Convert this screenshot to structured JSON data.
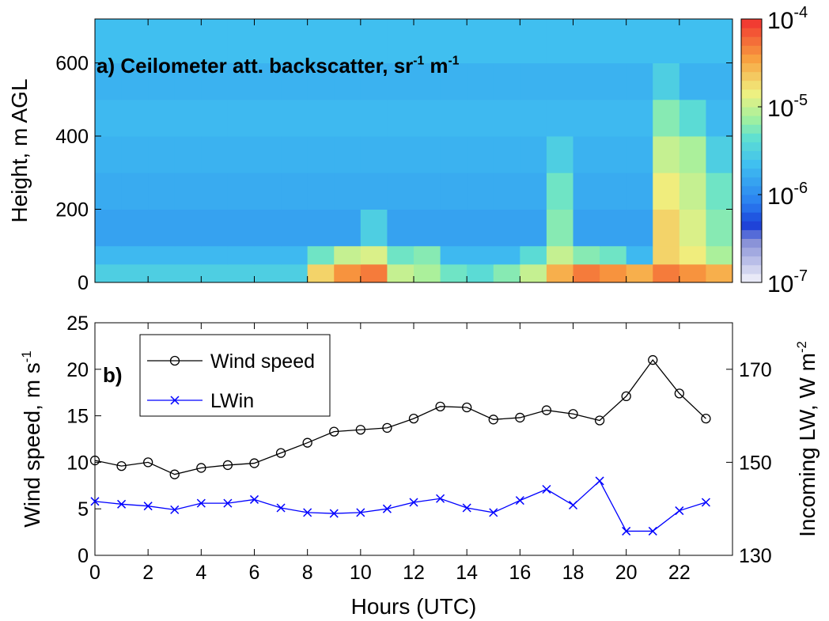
{
  "chart_data": [
    {
      "type": "heatmap",
      "title": {
        "text": [
          "a) Ceilometer att. backscatter, sr",
          " m"
        ],
        "sup": [
          "-1",
          "-1"
        ]
      },
      "ylabel": "Height, m AGL",
      "x_bins": [
        0,
        1,
        2,
        3,
        4,
        5,
        6,
        7,
        8,
        9,
        10,
        11,
        12,
        13,
        14,
        15,
        16,
        17,
        18,
        19,
        20,
        21,
        22,
        23,
        24
      ],
      "y_bins": [
        0,
        50,
        100,
        200,
        300,
        400,
        500,
        600,
        720
      ],
      "values": [
        [
          3e-06,
          3e-06,
          3e-06,
          3e-06,
          3e-06,
          3e-06,
          3e-06,
          3e-06,
          2e-05,
          4e-05,
          5e-05,
          1e-05,
          8e-06,
          5e-06,
          4e-06,
          6e-06,
          1e-05,
          3e-05,
          5e-05,
          4e-05,
          3e-05,
          5e-05,
          4e-05,
          3e-05
        ],
        [
          2e-06,
          2e-06,
          2e-06,
          2e-06,
          2e-06,
          2e-06,
          2e-06,
          2e-06,
          5e-06,
          1e-05,
          1.2e-05,
          5e-06,
          6e-06,
          2e-06,
          2e-06,
          2e-06,
          4e-06,
          1e-05,
          6e-06,
          5e-06,
          2e-06,
          2e-05,
          1.5e-05,
          8e-06
        ],
        [
          1.4e-06,
          1.4e-06,
          1.4e-06,
          1.4e-06,
          1.4e-06,
          1.4e-06,
          1.4e-06,
          1.4e-06,
          1.4e-06,
          1.4e-06,
          3e-06,
          1.4e-06,
          1.4e-06,
          1.4e-06,
          1.4e-06,
          1.4e-06,
          1.4e-06,
          6e-06,
          1.4e-06,
          1.4e-06,
          1.4e-06,
          2e-05,
          1.2e-05,
          6e-06
        ],
        [
          1.6e-06,
          1.6e-06,
          1.6e-06,
          1.6e-06,
          1.6e-06,
          1.6e-06,
          1.6e-06,
          1.6e-06,
          1.6e-06,
          1.6e-06,
          1.6e-06,
          1.6e-06,
          1.6e-06,
          1.6e-06,
          1.6e-06,
          1.6e-06,
          1.6e-06,
          5e-06,
          1.6e-06,
          1.6e-06,
          1.6e-06,
          1.5e-05,
          1e-05,
          5e-06
        ],
        [
          1.8e-06,
          1.8e-06,
          1.8e-06,
          1.8e-06,
          1.8e-06,
          1.8e-06,
          1.8e-06,
          1.8e-06,
          1.8e-06,
          1.8e-06,
          1.8e-06,
          1.8e-06,
          1.8e-06,
          1.8e-06,
          1.8e-06,
          1.8e-06,
          1.8e-06,
          3e-06,
          1.8e-06,
          1.8e-06,
          1.8e-06,
          1e-05,
          8e-06,
          3e-06
        ],
        [
          2e-06,
          2e-06,
          2e-06,
          2e-06,
          2e-06,
          2e-06,
          2e-06,
          2e-06,
          2e-06,
          2e-06,
          2e-06,
          2e-06,
          2e-06,
          2e-06,
          2e-06,
          2e-06,
          2e-06,
          2e-06,
          2e-06,
          2e-06,
          2e-06,
          6e-06,
          4e-06,
          2e-06
        ],
        [
          1.8e-06,
          1.8e-06,
          1.8e-06,
          1.8e-06,
          1.8e-06,
          1.8e-06,
          1.8e-06,
          1.8e-06,
          1.8e-06,
          1.8e-06,
          1.8e-06,
          1.8e-06,
          1.8e-06,
          1.8e-06,
          1.8e-06,
          1.8e-06,
          1.8e-06,
          1.8e-06,
          1.8e-06,
          1.8e-06,
          1.8e-06,
          3e-06,
          1.8e-06,
          1.8e-06
        ],
        [
          2.2e-06,
          2.2e-06,
          2.2e-06,
          2.2e-06,
          2.2e-06,
          2.2e-06,
          2.2e-06,
          2.2e-06,
          2.2e-06,
          2.2e-06,
          2.2e-06,
          2.2e-06,
          2.2e-06,
          2.2e-06,
          2.2e-06,
          2.2e-06,
          2.2e-06,
          2.2e-06,
          2.2e-06,
          2.2e-06,
          2.2e-06,
          2.2e-06,
          2.2e-06,
          2.2e-06
        ]
      ],
      "xlim": [
        0,
        24
      ],
      "xticks": [
        0,
        2,
        4,
        6,
        8,
        10,
        12,
        14,
        16,
        18,
        20,
        22
      ],
      "xtick_labels": false,
      "ylim": [
        0,
        720
      ],
      "yticks": [
        0,
        200,
        400,
        600
      ],
      "zlim": [
        1e-07,
        0.0001
      ],
      "zscale": "log",
      "zticks": [
        {
          "value": 1e-07,
          "label": "10",
          "sup": "-7"
        },
        {
          "value": 1e-06,
          "label": "10",
          "sup": "-6"
        },
        {
          "value": 1e-05,
          "label": "10",
          "sup": "-5"
        },
        {
          "value": 0.0001,
          "label": "10",
          "sup": "-4"
        }
      ]
    },
    {
      "type": "line",
      "annotation": "b)",
      "xlabel": "Hours (UTC)",
      "ylabel": {
        "text": [
          "Wind speed, m s"
        ],
        "sup": [
          "-1"
        ]
      },
      "y2label": {
        "text": [
          "Incoming LW, W m"
        ],
        "sup": [
          "-2"
        ]
      },
      "x": [
        0,
        1,
        2,
        3,
        4,
        5,
        6,
        7,
        8,
        9,
        10,
        11,
        12,
        13,
        14,
        15,
        16,
        17,
        18,
        19,
        20,
        21,
        22,
        23
      ],
      "series": [
        {
          "name": "Wind speed",
          "color": "#000000",
          "marker": "circle",
          "values": [
            10.2,
            9.6,
            10.0,
            8.7,
            9.4,
            9.7,
            9.9,
            11.0,
            12.1,
            13.3,
            13.5,
            13.7,
            14.7,
            16.0,
            15.9,
            14.6,
            14.8,
            15.6,
            15.2,
            14.5,
            17.1,
            21.0,
            17.4,
            14.7
          ]
        },
        {
          "name": "LWin",
          "color": "#0000ff",
          "marker": "x",
          "axis": "y2",
          "values": [
            141.6,
            141.0,
            140.6,
            139.8,
            141.2,
            141.2,
            142.0,
            140.2,
            139.2,
            139.0,
            139.2,
            140.0,
            141.4,
            142.2,
            140.2,
            139.2,
            141.8,
            144.2,
            140.8,
            146.0,
            135.2,
            135.2,
            139.6,
            141.4
          ]
        }
      ],
      "xlim": [
        0,
        24
      ],
      "xticks": [
        0,
        2,
        4,
        6,
        8,
        10,
        12,
        14,
        16,
        18,
        20,
        22
      ],
      "ylim": [
        0,
        25
      ],
      "yticks": [
        0,
        5,
        10,
        15,
        20,
        25
      ],
      "y2lim": [
        130,
        180
      ],
      "y2ticks": [
        130,
        150,
        170
      ],
      "legend": "upper left"
    }
  ]
}
